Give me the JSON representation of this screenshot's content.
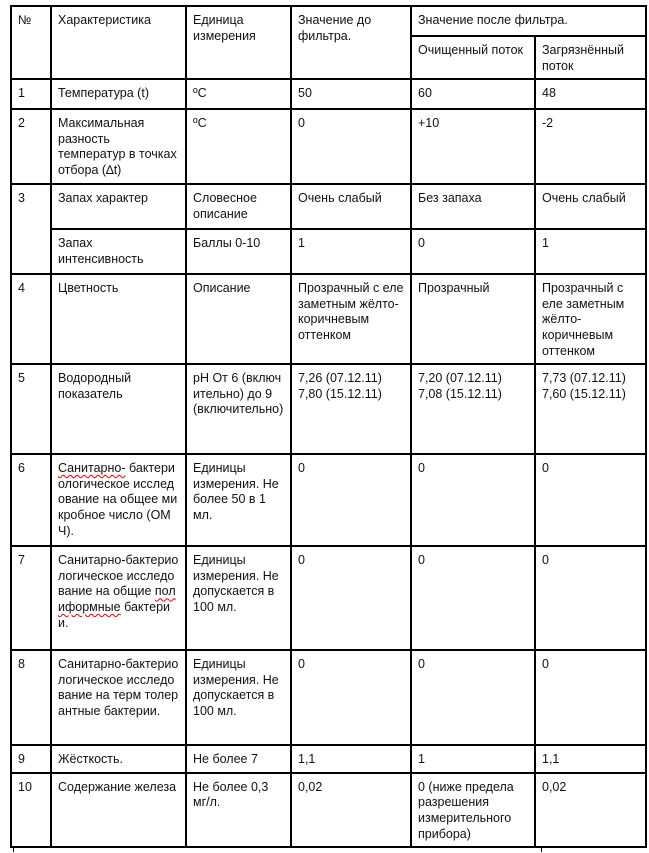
{
  "header": {
    "num": "№",
    "characteristic": "Характеристика",
    "unit": "Единица измерения",
    "before": "Значение до фильтра.",
    "after": "Значение после фильтра.",
    "clean": "Очищенный поток",
    "dirty": "Загрязнённый поток"
  },
  "rows": [
    {
      "num": "1",
      "name": "Температура (t)",
      "unit": "ºC",
      "before": "50",
      "clean": "60",
      "dirty": "48"
    },
    {
      "num": "2",
      "name": "Максимальная разность температур в точках отбора (∆t)",
      "unit": "ºC",
      "before": "0",
      "clean": "+10",
      "dirty": "-2"
    },
    {
      "num": "3",
      "name": "Запах характер",
      "unit": "Словесное описание",
      "before": "Очень слабый",
      "clean": "Без запаха",
      "dirty": "Очень слабый"
    },
    {
      "num": "",
      "name": "Запах интенсивность",
      "unit": "Баллы 0-10",
      "before": "1",
      "clean": "0",
      "dirty": "1"
    },
    {
      "num": "4",
      "name": "Цветность",
      "unit": "Описание",
      "before": "Прозрачный с еле заметным жёлто-коричневым оттенком",
      "clean": "Прозрачный",
      "dirty": "Прозрачный с еле заметным жёлто-коричневым оттенком"
    },
    {
      "num": "5",
      "name": "Водородный показатель",
      "unit": "pH От 6 (включительно) до 9 (включительно)",
      "before": "7,26 (07.12.11)\n7,80 (15.12.11)",
      "clean": "7,20 (07.12.11)\n7,08 (15.12.11)",
      "dirty": "7,73 (07.12.11)\n7,60 (15.12.11)"
    },
    {
      "num": "6",
      "name_a": "Санитарно-",
      "name_b": "бактериологическое исследование на общее микробное число (ОМЧ).",
      "unit": "Единицы измерения. Не более 50 в 1 мл.",
      "before": "0",
      "clean": "0",
      "dirty": "0"
    },
    {
      "num": "7",
      "name_a": "Санитарно-бактериологическое исследование на общие",
      "name_b": "полиформные",
      "name_c": "бактерии.",
      "unit": "Единицы измерения. Не допускается в 100 мл.",
      "before": "0",
      "clean": "0",
      "dirty": "0"
    },
    {
      "num": "8",
      "name": "Санитарно-бактериологическое исследование на терм толерантные бактерии.",
      "unit": "Единицы измерения. Не допускается в 100 мл.",
      "before": "0",
      "clean": "0",
      "dirty": "0"
    },
    {
      "num": "9",
      "name": "Жёсткость.",
      "unit": "Не более 7",
      "before": "1,1",
      "clean": "1",
      "dirty": "1,1"
    },
    {
      "num": "10",
      "name": "Содержание железа",
      "unit": "Не более 0,3 мг/л.",
      "before": "0,02",
      "clean": "0 (ниже предела разрешения измерительного прибора)",
      "dirty": "0,02"
    }
  ]
}
